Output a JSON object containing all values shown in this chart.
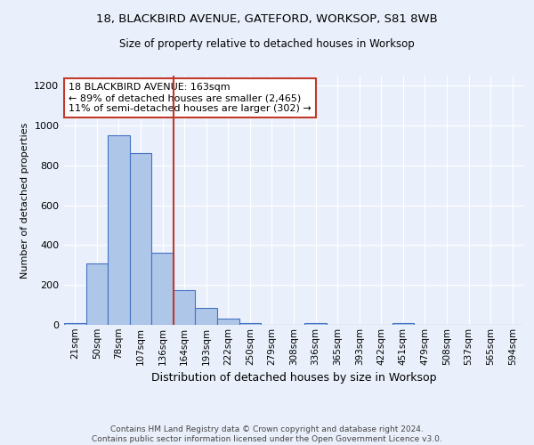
{
  "title1": "18, BLACKBIRD AVENUE, GATEFORD, WORKSOP, S81 8WB",
  "title2": "Size of property relative to detached houses in Worksop",
  "xlabel": "Distribution of detached houses by size in Worksop",
  "ylabel": "Number of detached properties",
  "bin_labels": [
    "21sqm",
    "50sqm",
    "78sqm",
    "107sqm",
    "136sqm",
    "164sqm",
    "193sqm",
    "222sqm",
    "250sqm",
    "279sqm",
    "308sqm",
    "336sqm",
    "365sqm",
    "393sqm",
    "422sqm",
    "451sqm",
    "479sqm",
    "508sqm",
    "537sqm",
    "565sqm",
    "594sqm"
  ],
  "bar_values": [
    10,
    310,
    950,
    860,
    360,
    175,
    85,
    30,
    10,
    0,
    0,
    10,
    0,
    0,
    0,
    10,
    0,
    0,
    0,
    0,
    0
  ],
  "bar_color": "#aec6e8",
  "bar_edge_color": "#4472c4",
  "background_color": "#eaf0fb",
  "grid_color": "#ffffff",
  "vline_color": "#c0392b",
  "annotation_text": "18 BLACKBIRD AVENUE: 163sqm\n← 89% of detached houses are smaller (2,465)\n11% of semi-detached houses are larger (302) →",
  "annotation_box_color": "#ffffff",
  "annotation_box_edge": "#c0392b",
  "ylim": [
    0,
    1250
  ],
  "yticks": [
    0,
    200,
    400,
    600,
    800,
    1000,
    1200
  ],
  "footer": "Contains HM Land Registry data © Crown copyright and database right 2024.\nContains public sector information licensed under the Open Government Licence v3.0."
}
